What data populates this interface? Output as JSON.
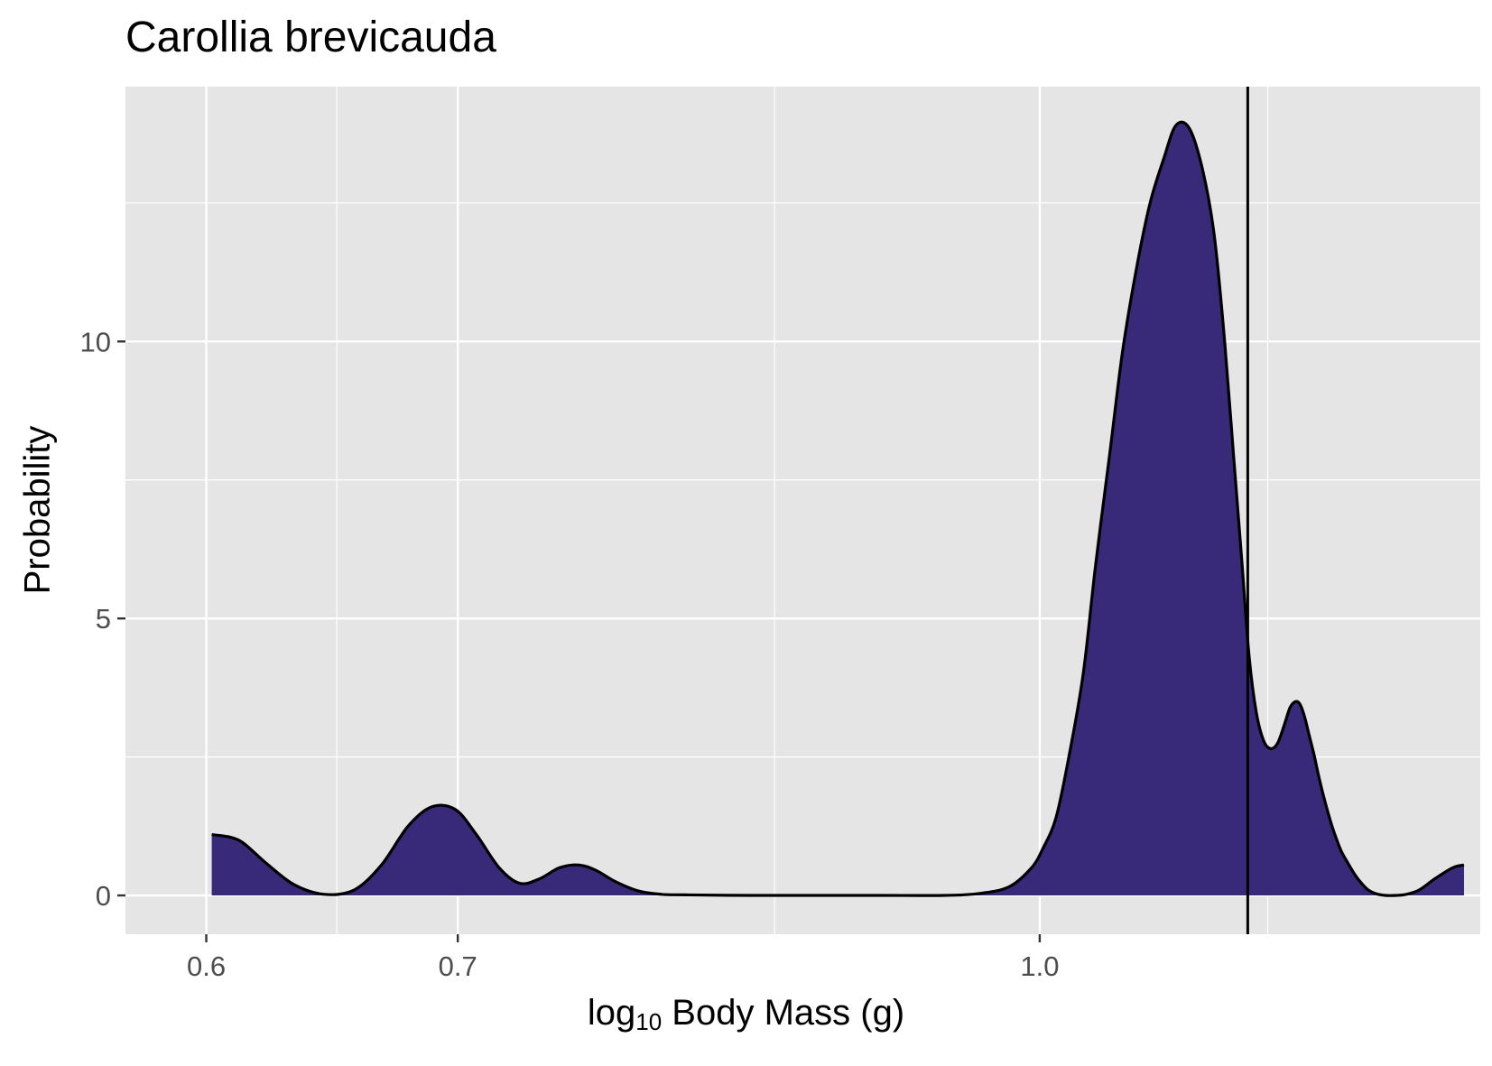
{
  "chart_data": {
    "type": "area",
    "title": "Carollia brevicauda",
    "xlabel": {
      "prefix": "log",
      "subscript": "10",
      "suffix": " Body Mass (g)"
    },
    "ylabel": "Probability",
    "x_ticks": [
      {
        "value": 0.6,
        "label": "0.6"
      },
      {
        "value": 0.7,
        "label": "0.7"
      },
      {
        "value": 1.0,
        "label": "1.0"
      }
    ],
    "x_minor_gridlines": [
      0.65,
      0.85,
      1.15
    ],
    "y_ticks": [
      {
        "value": 0,
        "label": "0"
      },
      {
        "value": 5,
        "label": "5"
      },
      {
        "value": 10,
        "label": "10"
      }
    ],
    "y_minor_gridlines": [
      2.5,
      7.5,
      12.5
    ],
    "xlim": [
      0.571,
      1.31
    ],
    "ylim": [
      -0.7,
      14.6
    ],
    "x_scale": "log10",
    "grid": true,
    "fill_color": "#382A78",
    "line_color": "#000000",
    "panel_background": "#E5E5E5",
    "vertical_line": {
      "x": 1.136
    },
    "density": {
      "x": [
        0.602,
        0.612,
        0.622,
        0.633,
        0.645,
        0.657,
        0.668,
        0.679,
        0.689,
        0.699,
        0.708,
        0.718,
        0.727,
        0.736,
        0.745,
        0.754,
        0.762,
        0.771,
        0.782,
        0.793,
        0.805,
        0.838,
        0.872,
        0.907,
        0.943,
        0.962,
        0.981,
        0.995,
        1.002,
        1.01,
        1.018,
        1.027,
        1.035,
        1.044,
        1.052,
        1.061,
        1.07,
        1.079,
        1.087,
        1.096,
        1.105,
        1.113,
        1.12,
        1.126,
        1.132,
        1.137,
        1.142,
        1.147,
        1.152,
        1.157,
        1.162,
        1.166,
        1.17,
        1.173,
        1.176,
        1.179,
        1.183,
        1.187,
        1.191,
        1.195,
        1.199,
        1.203,
        1.208,
        1.213,
        1.218,
        1.223,
        1.229,
        1.236,
        1.244,
        1.252,
        1.262,
        1.274,
        1.288,
        1.297
      ],
      "y": [
        1.1,
        1.0,
        0.6,
        0.2,
        0.02,
        0.1,
        0.55,
        1.25,
        1.6,
        1.55,
        1.1,
        0.5,
        0.22,
        0.3,
        0.5,
        0.55,
        0.45,
        0.25,
        0.08,
        0.02,
        0.01,
        0.0,
        0.0,
        0.0,
        0.0,
        0.03,
        0.15,
        0.5,
        0.85,
        1.4,
        2.5,
        4.0,
        6.0,
        8.0,
        9.8,
        11.3,
        12.5,
        13.3,
        13.9,
        13.85,
        13.1,
        11.9,
        10.0,
        8.0,
        6.0,
        4.3,
        3.3,
        2.8,
        2.65,
        2.75,
        3.1,
        3.4,
        3.5,
        3.45,
        3.25,
        2.95,
        2.55,
        2.1,
        1.7,
        1.35,
        1.05,
        0.8,
        0.58,
        0.38,
        0.22,
        0.1,
        0.03,
        0.0,
        0.0,
        0.02,
        0.1,
        0.3,
        0.5,
        0.55
      ]
    }
  }
}
